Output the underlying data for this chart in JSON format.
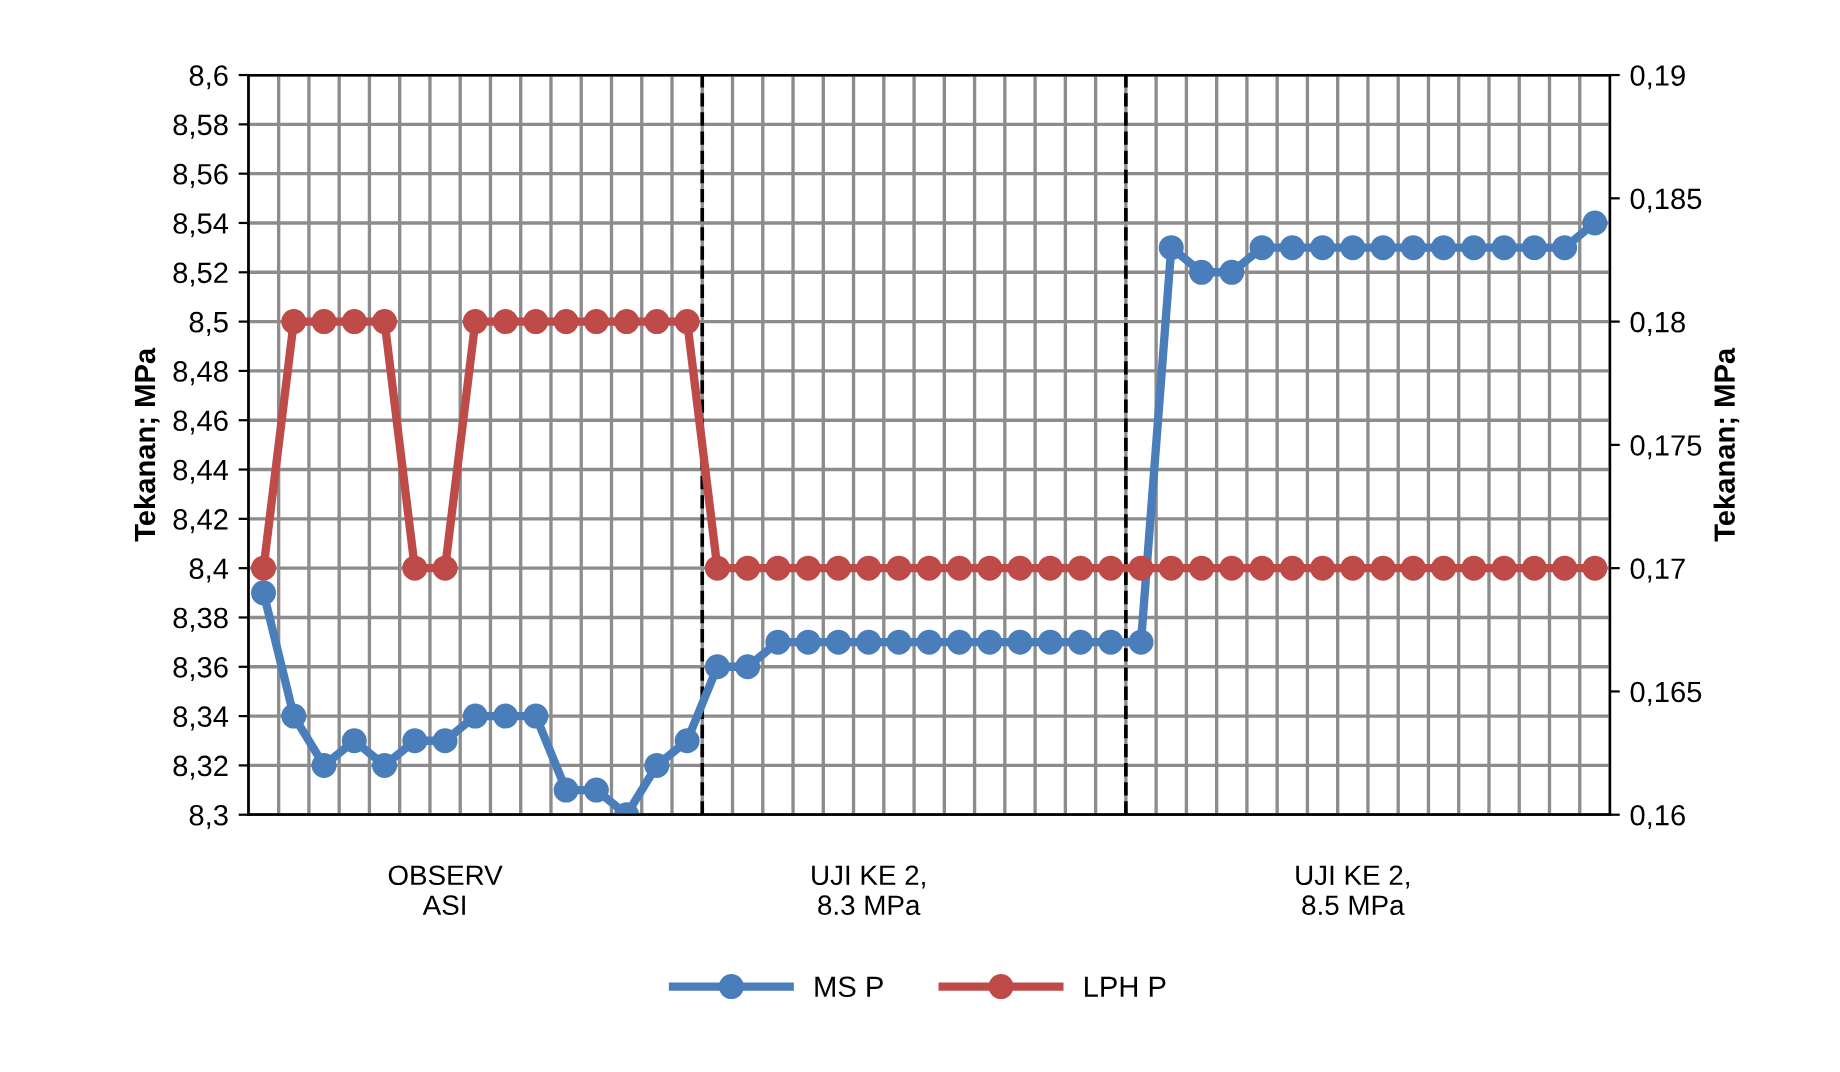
{
  "chart_data": {
    "type": "line",
    "categories": [
      null,
      null,
      null,
      null,
      null,
      null,
      "OBSERV\nASI",
      null,
      null,
      null,
      null,
      null,
      null,
      null,
      null,
      null,
      null,
      null,
      null,
      null,
      "UJI KE 2,\n8.3 MPa",
      null,
      null,
      null,
      null,
      null,
      null,
      null,
      null,
      null,
      null,
      null,
      null,
      null,
      null,
      null,
      "UJI KE 2,\n8.5 MPa",
      null,
      null,
      null,
      null,
      null,
      null,
      null,
      null
    ],
    "series": [
      {
        "name": "MS P",
        "color": "#4a7ebb",
        "values": [
          8.39,
          8.34,
          8.32,
          8.33,
          8.32,
          8.33,
          8.33,
          8.34,
          8.34,
          8.34,
          8.31,
          8.31,
          8.3,
          8.32,
          8.33,
          8.36,
          8.36,
          8.37,
          8.37,
          8.37,
          8.37,
          8.37,
          8.37,
          8.37,
          8.37,
          8.37,
          8.37,
          8.37,
          8.37,
          8.37,
          8.53,
          8.52,
          8.52,
          8.53,
          8.53,
          8.53,
          8.53,
          8.53,
          8.53,
          8.53,
          8.53,
          8.53,
          8.53,
          8.53,
          8.54
        ]
      },
      {
        "name": "LPH P",
        "color": "#be4b48",
        "axis": "y2",
        "values": [
          0.17,
          0.18,
          0.18,
          0.18,
          0.18,
          0.17,
          0.17,
          0.18,
          0.18,
          0.18,
          0.18,
          0.18,
          0.18,
          0.18,
          0.18,
          0.17,
          0.17,
          0.17,
          0.17,
          0.17,
          0.17,
          0.17,
          0.17,
          0.17,
          0.17,
          0.17,
          0.17,
          0.17,
          0.17,
          0.17,
          0.17,
          0.17,
          0.17,
          0.17,
          0.17,
          0.17,
          0.17,
          0.17,
          0.17,
          0.17,
          0.17,
          0.17,
          0.17,
          0.17,
          0.17
        ]
      }
    ],
    "ylabel": "Tekanan; MPa",
    "y2label": "Tekanan; MPa",
    "ylim": [
      8.3,
      8.6
    ],
    "yticks": [
      {
        "value": 8.3,
        "label": "8,3"
      },
      {
        "value": 8.32,
        "label": "8,32"
      },
      {
        "value": 8.34,
        "label": "8,34"
      },
      {
        "value": 8.36,
        "label": "8,36"
      },
      {
        "value": 8.38,
        "label": "8,38"
      },
      {
        "value": 8.4,
        "label": "8,4"
      },
      {
        "value": 8.42,
        "label": "8,42"
      },
      {
        "value": 8.44,
        "label": "8,44"
      },
      {
        "value": 8.46,
        "label": "8,46"
      },
      {
        "value": 8.48,
        "label": "8,48"
      },
      {
        "value": 8.5,
        "label": "8,5"
      },
      {
        "value": 8.52,
        "label": "8,52"
      },
      {
        "value": 8.54,
        "label": "8,54"
      },
      {
        "value": 8.56,
        "label": "8,56"
      },
      {
        "value": 8.58,
        "label": "8,58"
      },
      {
        "value": 8.6,
        "label": "8,6"
      }
    ],
    "y2lim": [
      0.16,
      0.19
    ],
    "y2ticks": [
      {
        "value": 0.16,
        "label": "0,16"
      },
      {
        "value": 0.165,
        "label": "0,165"
      },
      {
        "value": 0.17,
        "label": "0,17"
      },
      {
        "value": 0.175,
        "label": "0,175"
      },
      {
        "value": 0.18,
        "label": "0,18"
      },
      {
        "value": 0.185,
        "label": "0,185"
      },
      {
        "value": 0.19,
        "label": "0,19"
      }
    ],
    "grid": true,
    "legend": "bottom",
    "marker": "circle",
    "line_style": "solid"
  }
}
